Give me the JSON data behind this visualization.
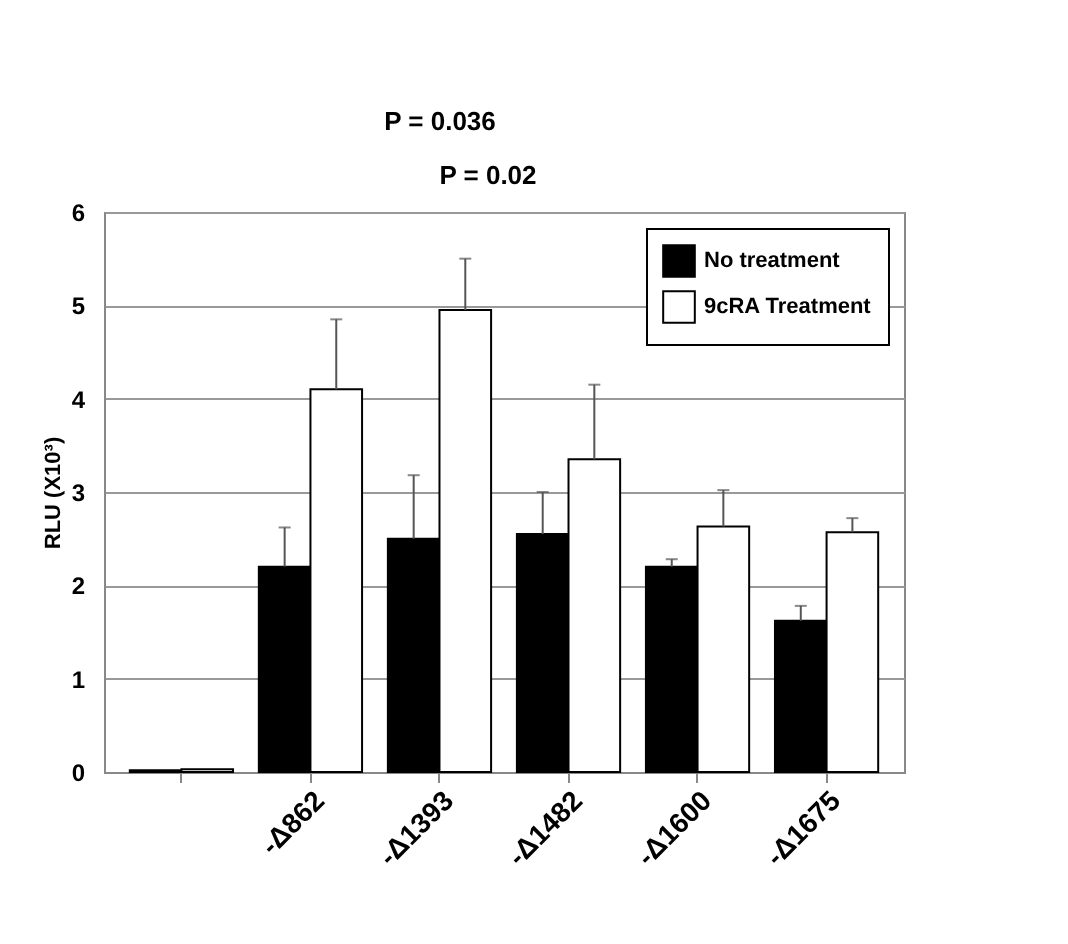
{
  "chart_data": {
    "type": "bar",
    "ylabel": "RLU (X10³)",
    "categories": [
      null,
      "-Δ862",
      "-Δ1393",
      "-Δ1482",
      "-Δ1600",
      "-Δ1675"
    ],
    "series": [
      {
        "name": "No treatment",
        "color": "#000000",
        "values": [
          0.02,
          2.2,
          2.5,
          2.55,
          2.2,
          1.62
        ],
        "errors": [
          null,
          [
            2.2,
            2.62
          ],
          [
            2.5,
            3.18
          ],
          [
            2.55,
            3.0
          ],
          [
            2.2,
            2.28
          ],
          [
            1.62,
            1.78
          ]
        ]
      },
      {
        "name": "9cRA Treatment",
        "color": "#ffffff",
        "values": [
          0.03,
          4.1,
          4.95,
          3.35,
          2.63,
          2.57
        ],
        "errors": [
          null,
          [
            4.1,
            4.85
          ],
          [
            4.95,
            5.5
          ],
          [
            3.35,
            4.15
          ],
          [
            2.63,
            3.02
          ],
          [
            2.57,
            2.72
          ]
        ]
      }
    ],
    "ylim": [
      0,
      6
    ],
    "yticks": [
      0,
      1,
      2,
      3,
      4,
      5,
      6
    ],
    "grid": "y",
    "legend": "top right",
    "annotations": [
      "P = 0.036",
      "P = 0.02"
    ]
  }
}
